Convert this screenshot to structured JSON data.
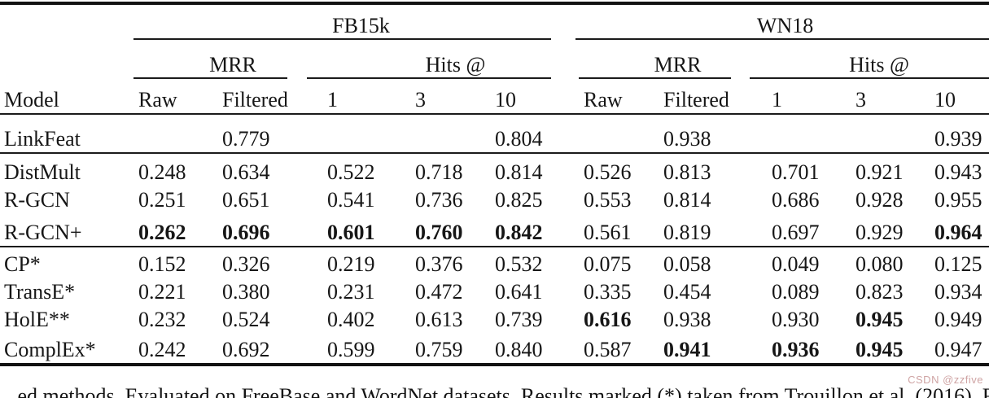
{
  "table": {
    "groups": {
      "fb15k": "FB15k",
      "wn18": "WN18",
      "mrr": "MRR",
      "hits": "Hits @"
    },
    "col_headers": {
      "model": "Model",
      "raw": "Raw",
      "filtered": "Filtered",
      "h1": "1",
      "h3": "3",
      "h10": "10"
    },
    "rows": [
      {
        "model": "LinkFeat",
        "values": [
          "",
          "0.779",
          "",
          "",
          "0.804",
          "",
          "0.938",
          "",
          "",
          "0.939"
        ]
      },
      {
        "model": "DistMult",
        "values": [
          "0.248",
          "0.634",
          "0.522",
          "0.718",
          "0.814",
          "0.526",
          "0.813",
          "0.701",
          "0.921",
          "0.943"
        ]
      },
      {
        "model": "R-GCN",
        "values": [
          "0.251",
          "0.651",
          "0.541",
          "0.736",
          "0.825",
          "0.553",
          "0.814",
          "0.686",
          "0.928",
          "0.955"
        ]
      },
      {
        "model": "R-GCN+",
        "values": [
          "0.262",
          "0.696",
          "0.601",
          "0.760",
          "0.842",
          "0.561",
          "0.819",
          "0.697",
          "0.929",
          "0.964"
        ]
      },
      {
        "model": "CP*",
        "values": [
          "0.152",
          "0.326",
          "0.219",
          "0.376",
          "0.532",
          "0.075",
          "0.058",
          "0.049",
          "0.080",
          "0.125"
        ]
      },
      {
        "model": "TransE*",
        "values": [
          "0.221",
          "0.380",
          "0.231",
          "0.472",
          "0.641",
          "0.335",
          "0.454",
          "0.089",
          "0.823",
          "0.934"
        ]
      },
      {
        "model": "HolE**",
        "values": [
          "0.232",
          "0.524",
          "0.402",
          "0.613",
          "0.739",
          "0.616",
          "0.938",
          "0.930",
          "0.945",
          "0.949"
        ]
      },
      {
        "model": "ComplEx*",
        "values": [
          "0.242",
          "0.692",
          "0.599",
          "0.759",
          "0.840",
          "0.587",
          "0.941",
          "0.936",
          "0.945",
          "0.947"
        ]
      }
    ]
  },
  "caption_fragment": "...ed methods. Evaluated on FreeBase and WordNet datasets. Results marked (*) taken from Trouillon et al. (2016). R",
  "watermark": "CSDN @zzfive",
  "colors": {
    "rule": "#1b1b1b",
    "watermark": "#cfa4a4",
    "text": "#161616"
  }
}
